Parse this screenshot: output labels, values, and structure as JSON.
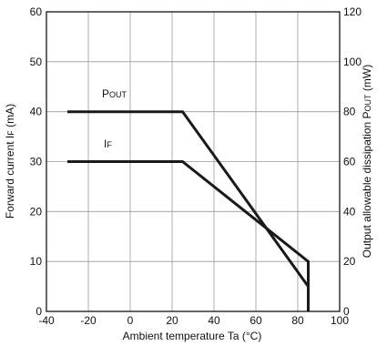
{
  "chart_data": {
    "type": "line",
    "xlabel": "Ambient temperature Ta (°C)",
    "ylabel_left": {
      "main": "Forward current I",
      "sub": "F",
      "unit": " (mA)"
    },
    "ylabel_right": {
      "main": "Output allowable dissipation P",
      "sub": "OUT",
      "unit": " (mW)"
    },
    "xlim": [
      -40,
      100
    ],
    "ylim_left": [
      0,
      60
    ],
    "ylim_right": [
      0,
      120
    ],
    "xticks": [
      "-40",
      "-20",
      "0",
      "20",
      "40",
      "60",
      "80",
      "100"
    ],
    "yticks_left": [
      "0",
      "10",
      "20",
      "30",
      "40",
      "50",
      "60"
    ],
    "yticks_right": [
      "0",
      "20",
      "40",
      "60",
      "80",
      "100",
      "120"
    ],
    "grid": true,
    "series": [
      {
        "name": "POUT",
        "label_main": "P",
        "label_sub": "OUT",
        "axis": "right",
        "x": [
          -30,
          25,
          85,
          85
        ],
        "y": [
          80,
          80,
          10,
          0
        ]
      },
      {
        "name": "IF",
        "label_main": "I",
        "label_sub": "F",
        "axis": "left",
        "x": [
          -30,
          25,
          85,
          85
        ],
        "y": [
          30,
          30,
          10,
          0
        ]
      }
    ]
  }
}
